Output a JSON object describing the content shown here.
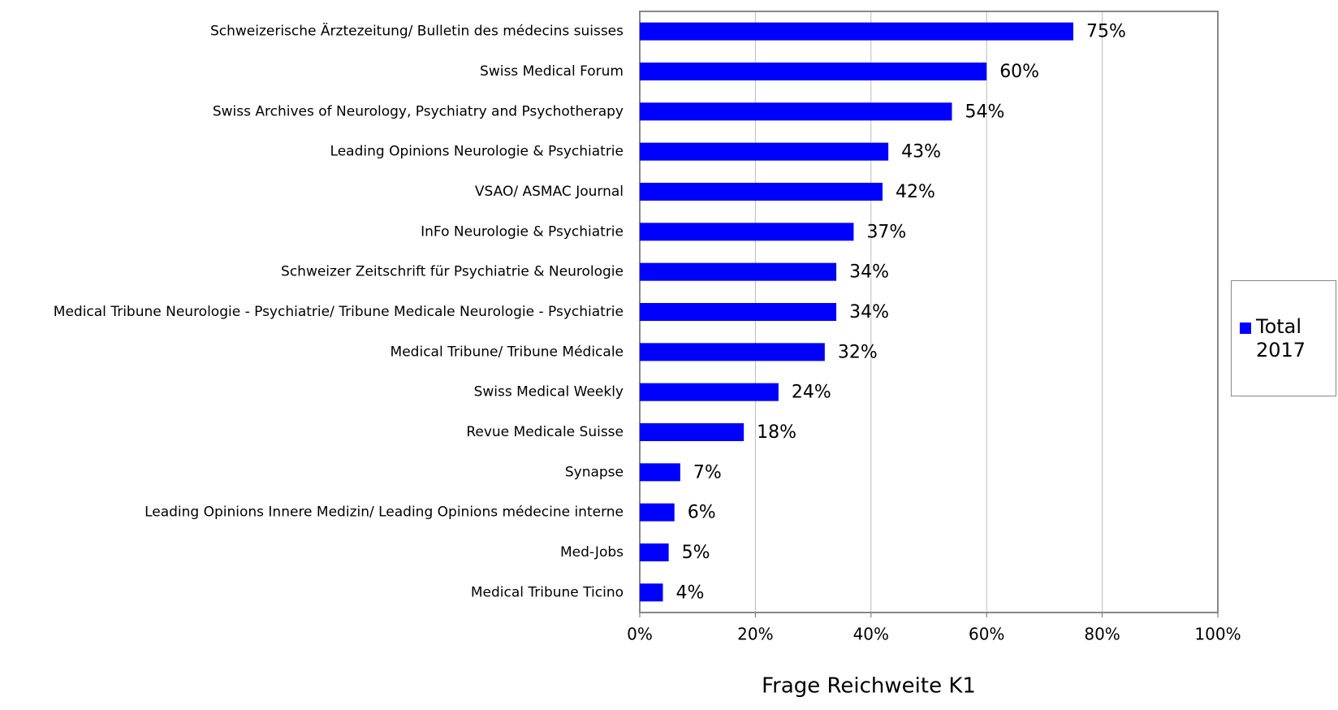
{
  "chart_data": {
    "type": "hbar",
    "x_label": "Frage Reichweite K1",
    "categories": [
      "Schweizerische Ärztezeitung/ Bulletin des médecins suisses",
      "Swiss Medical Forum",
      "Swiss Archives of Neurology, Psychiatry and Psychotherapy",
      "Leading Opinions Neurologie & Psychiatrie",
      "VSAO/ ASMAC Journal",
      "InFo Neurologie & Psychiatrie",
      "Schweizer Zeitschrift für Psychiatrie & Neurologie",
      "Medical Tribune Neurologie - Psychiatrie/ Tribune Medicale Neurologie - Psychiatrie",
      "Medical Tribune/ Tribune Médicale",
      "Swiss Medical Weekly",
      "Revue Medicale Suisse",
      "Synapse",
      "Leading Opinions Innere Medizin/ Leading Opinions médecine interne",
      "Med-Jobs",
      "Medical Tribune Ticino"
    ],
    "series": [
      {
        "name": "Total 2017",
        "color": "#0000ff",
        "values": [
          75,
          60,
          54,
          43,
          42,
          37,
          34,
          34,
          32,
          24,
          18,
          7,
          6,
          5,
          4
        ],
        "value_labels": [
          "75%",
          "60%",
          "54%",
          "43%",
          "42%",
          "37%",
          "34%",
          "34%",
          "32%",
          "24%",
          "18%",
          "7%",
          "6%",
          "5%",
          "4%"
        ]
      }
    ],
    "xlim": [
      0,
      100
    ],
    "xticks": [
      {
        "value": 0,
        "label": "0%"
      },
      {
        "value": 20,
        "label": "20%"
      },
      {
        "value": 40,
        "label": "40%"
      },
      {
        "value": 60,
        "label": "60%"
      },
      {
        "value": 80,
        "label": "80%"
      },
      {
        "value": 100,
        "label": "100%"
      }
    ],
    "grid": true,
    "legend": "right"
  }
}
